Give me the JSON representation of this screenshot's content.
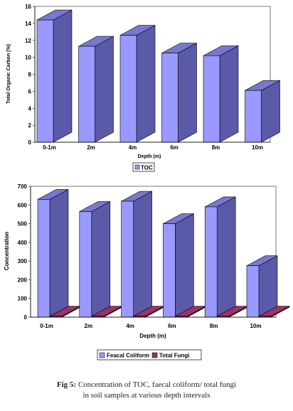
{
  "chart_data": [
    {
      "type": "bar",
      "categories": [
        "0-1m",
        "2m",
        "4m",
        "6m",
        "8m",
        "10m"
      ],
      "series": [
        {
          "name": "TOC",
          "values": [
            14.4,
            11.3,
            12.6,
            10.5,
            10.2,
            6.1
          ]
        }
      ],
      "xlabel": "Depth (m)",
      "ylabel": "Total Organic Carbon (%)",
      "ylim": [
        0,
        16
      ],
      "yticks": [
        0,
        2,
        4,
        6,
        8,
        10,
        12,
        14,
        16
      ],
      "grid": false,
      "legend": "bottom-left",
      "colors": {
        "front": "#9999ff",
        "side": "#5a5aa8",
        "top": "#7878d0"
      }
    },
    {
      "type": "bar",
      "categories": [
        "0-1m",
        "2m",
        "4m",
        "6m",
        "8m",
        "10m"
      ],
      "series": [
        {
          "name": "Feacal Coliform",
          "values": [
            630,
            565,
            620,
            500,
            590,
            275
          ]
        },
        {
          "name": "Total Fungi",
          "values": [
            5,
            5,
            5,
            5,
            5,
            5
          ]
        }
      ],
      "xlabel": "Depth (m)",
      "ylabel": "Concentration",
      "ylim": [
        0,
        700
      ],
      "yticks": [
        0,
        100,
        200,
        300,
        400,
        500,
        600,
        700
      ],
      "grid": false,
      "legend": "bottom-center",
      "colors": {
        "front": "#9999ff",
        "side": "#5a5aa8",
        "top": "#7878d0",
        "fungi": "#993366",
        "fungi_side": "#6b1f45"
      }
    }
  ],
  "caption": {
    "label": "Fig 5:",
    "text": "Concentration of TOC, faecal coliform/ total fungi",
    "line2": "in soil samples at various depth intervals"
  }
}
